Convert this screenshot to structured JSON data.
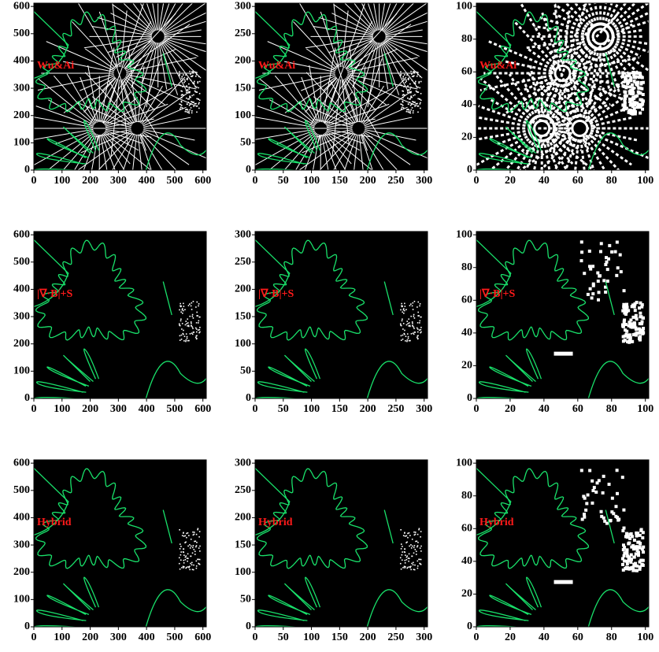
{
  "chart_data": [
    {
      "type": "image",
      "label": "Wu&Ai",
      "xlim": [
        0,
        612
      ],
      "ylim": [
        0,
        612
      ],
      "xticks": [
        0,
        100,
        200,
        300,
        400,
        500,
        600
      ],
      "yticks": [
        0,
        100,
        200,
        300,
        400,
        500,
        600
      ],
      "label_color": "#ff1a1a",
      "contour_color": "#19e06a"
    },
    {
      "type": "image",
      "label": "Wu&Ai",
      "xlim": [
        0,
        306
      ],
      "ylim": [
        0,
        306
      ],
      "xticks": [
        0,
        50,
        100,
        150,
        200,
        250,
        300
      ],
      "yticks": [
        0,
        50,
        100,
        150,
        200,
        250,
        300
      ],
      "label_color": "#ff1a1a",
      "contour_color": "#19e06a"
    },
    {
      "type": "image",
      "label": "Wu&Ai",
      "xlim": [
        0,
        102
      ],
      "ylim": [
        0,
        102
      ],
      "xticks": [
        0,
        20,
        40,
        60,
        80,
        100
      ],
      "yticks": [
        0,
        20,
        40,
        60,
        80,
        100
      ],
      "label_color": "#ff1a1a",
      "contour_color": "#19e06a"
    },
    {
      "type": "image",
      "label": "|∇·B|+S",
      "xlim": [
        0,
        612
      ],
      "ylim": [
        0,
        612
      ],
      "xticks": [
        0,
        100,
        200,
        300,
        400,
        500,
        600
      ],
      "yticks": [
        0,
        100,
        200,
        300,
        400,
        500,
        600
      ],
      "label_color": "#ff1a1a",
      "contour_color": "#19e06a"
    },
    {
      "type": "image",
      "label": "|∇·B|+S",
      "xlim": [
        0,
        306
      ],
      "ylim": [
        0,
        306
      ],
      "xticks": [
        0,
        50,
        100,
        150,
        200,
        250,
        300
      ],
      "yticks": [
        0,
        50,
        100,
        150,
        200,
        250,
        300
      ],
      "label_color": "#ff1a1a",
      "contour_color": "#19e06a"
    },
    {
      "type": "image",
      "label": "|∇·B|+S",
      "xlim": [
        0,
        102
      ],
      "ylim": [
        0,
        102
      ],
      "xticks": [
        0,
        20,
        40,
        60,
        80,
        100
      ],
      "yticks": [
        0,
        20,
        40,
        60,
        80,
        100
      ],
      "label_color": "#ff1a1a",
      "contour_color": "#19e06a"
    },
    {
      "type": "image",
      "label": "Hybrid",
      "xlim": [
        0,
        612
      ],
      "ylim": [
        0,
        612
      ],
      "xticks": [
        0,
        100,
        200,
        300,
        400,
        500,
        600
      ],
      "yticks": [
        0,
        100,
        200,
        300,
        400,
        500,
        600
      ],
      "label_color": "#ff1a1a",
      "contour_color": "#19e06a"
    },
    {
      "type": "image",
      "label": "Hybrid",
      "xlim": [
        0,
        306
      ],
      "ylim": [
        0,
        306
      ],
      "xticks": [
        0,
        50,
        100,
        150,
        200,
        250,
        300
      ],
      "yticks": [
        0,
        50,
        100,
        150,
        200,
        250,
        300
      ],
      "label_color": "#ff1a1a",
      "contour_color": "#19e06a"
    },
    {
      "type": "image",
      "label": "Hybrid",
      "xlim": [
        0,
        102
      ],
      "ylim": [
        0,
        102
      ],
      "xticks": [
        0,
        20,
        40,
        60,
        80,
        100
      ],
      "yticks": [
        0,
        20,
        40,
        60,
        80,
        100
      ],
      "label_color": "#ff1a1a",
      "contour_color": "#19e06a"
    }
  ]
}
